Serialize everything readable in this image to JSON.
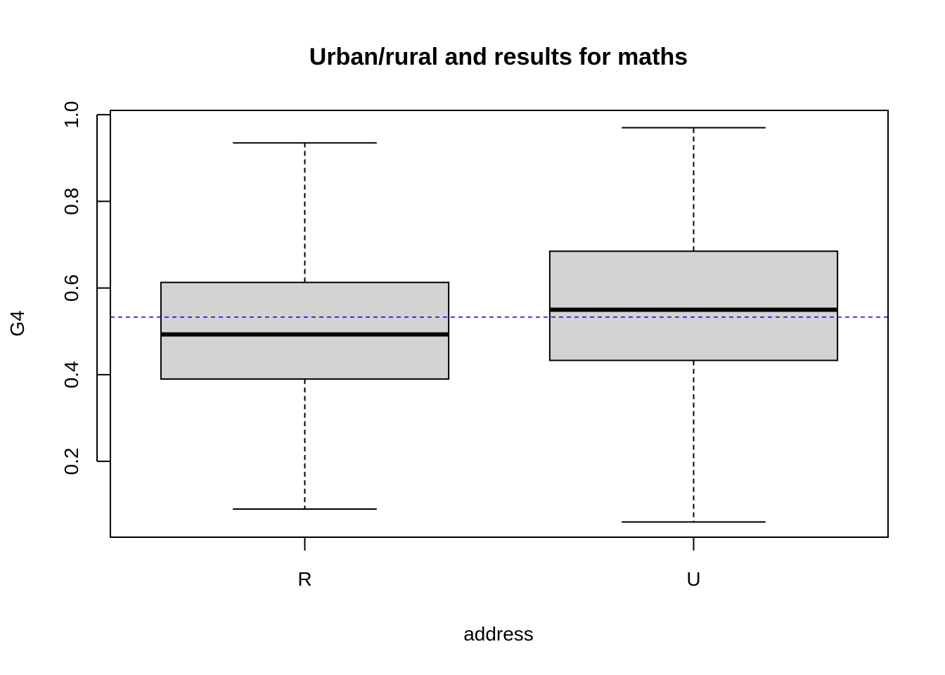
{
  "chart_data": {
    "type": "boxplot",
    "title": "Urban/rural and results for maths",
    "xlabel": "address",
    "ylabel": "G4",
    "categories": [
      "R",
      "U"
    ],
    "ylim": [
      0.025,
      1.01
    ],
    "yticks": [
      0.2,
      0.4,
      0.6,
      0.8,
      1.0
    ],
    "ytick_labels": [
      "0.2",
      "0.4",
      "0.6",
      "0.8",
      "1.0"
    ],
    "boxes": [
      {
        "category": "R",
        "whisker_low": 0.09,
        "q1": 0.39,
        "median": 0.493,
        "q3": 0.613,
        "whisker_high": 0.935
      },
      {
        "category": "U",
        "whisker_low": 0.06,
        "q1": 0.433,
        "median": 0.55,
        "q3": 0.685,
        "whisker_high": 0.97
      }
    ],
    "reference_line": {
      "value": 0.533,
      "style": "dashed",
      "color": "#0000ff"
    },
    "box_fill": "#d3d3d3",
    "grid": false
  }
}
